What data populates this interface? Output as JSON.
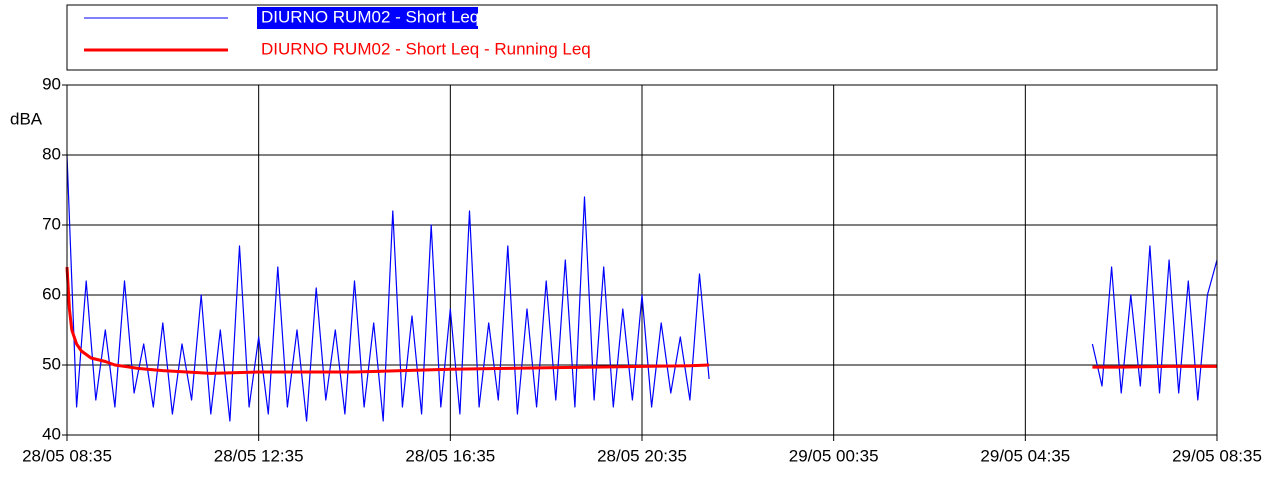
{
  "chart_data": {
    "type": "line",
    "ylabel": "dBA",
    "xlim": [
      0,
      24
    ],
    "xticks": [
      {
        "value": 0,
        "label": "28/05 08:35"
      },
      {
        "value": 4,
        "label": "28/05 12:35"
      },
      {
        "value": 8,
        "label": "28/05 16:35"
      },
      {
        "value": 12,
        "label": "28/05 20:35"
      },
      {
        "value": 16,
        "label": "29/05 00:35"
      },
      {
        "value": 20,
        "label": "29/05 04:35"
      },
      {
        "value": 24,
        "label": "29/05 08:35"
      }
    ],
    "ylim": [
      40,
      90
    ],
    "yticks": [
      40,
      50,
      60,
      70,
      80,
      90
    ],
    "grid": true,
    "series": [
      {
        "name": "DIURNO RUM02 - Short Leq",
        "color": "#0000ff",
        "x": [
          0,
          0.2,
          0.4,
          0.6,
          0.8,
          1.0,
          1.2,
          1.4,
          1.6,
          1.8,
          2.0,
          2.2,
          2.4,
          2.6,
          2.8,
          3.0,
          3.2,
          3.4,
          3.6,
          3.8,
          4.0,
          4.2,
          4.4,
          4.6,
          4.8,
          5.0,
          5.2,
          5.4,
          5.6,
          5.8,
          6.0,
          6.2,
          6.4,
          6.6,
          6.8,
          7.0,
          7.2,
          7.4,
          7.6,
          7.8,
          8.0,
          8.2,
          8.4,
          8.6,
          8.8,
          9.0,
          9.2,
          9.4,
          9.6,
          9.8,
          10.0,
          10.2,
          10.4,
          10.6,
          10.8,
          11.0,
          11.2,
          11.4,
          11.6,
          11.8,
          12.0,
          12.2,
          12.4,
          12.6,
          12.8,
          13.0,
          13.2,
          13.4,
          17.4,
          21.4,
          21.6,
          21.8,
          22.0,
          22.2,
          22.4,
          22.6,
          22.8,
          23.0,
          23.2,
          23.4,
          23.6,
          23.8,
          24.0
        ],
        "values": [
          80,
          44,
          62,
          45,
          55,
          44,
          62,
          46,
          53,
          44,
          56,
          43,
          53,
          45,
          60,
          43,
          55,
          42,
          67,
          44,
          54,
          43,
          64,
          44,
          55,
          42,
          61,
          45,
          55,
          43,
          62,
          44,
          56,
          42,
          72,
          44,
          57,
          43,
          70,
          44,
          58,
          43,
          72,
          44,
          56,
          45,
          67,
          43,
          58,
          44,
          62,
          45,
          65,
          44,
          74,
          45,
          64,
          44,
          58,
          45,
          60,
          44,
          56,
          46,
          54,
          45,
          63,
          48,
          null,
          53,
          47,
          64,
          46,
          60,
          47,
          67,
          46,
          65,
          46,
          62,
          45,
          60,
          65
        ]
      },
      {
        "name": "DIURNO RUM02 - Short Leq - Running Leq",
        "color": "#ff0000",
        "x": [
          0,
          0.05,
          0.1,
          0.2,
          0.3,
          0.5,
          0.8,
          1,
          1.5,
          2,
          3,
          4,
          5,
          6,
          7,
          8,
          9,
          10,
          11,
          12,
          13,
          13.4,
          17.4,
          21.4,
          22,
          23,
          24
        ],
        "values": [
          64,
          58,
          55,
          53,
          52,
          51,
          50.5,
          50,
          49.5,
          49.2,
          48.8,
          49,
          49,
          49,
          49.2,
          49.4,
          49.5,
          49.6,
          49.7,
          49.8,
          49.9,
          50,
          null,
          49.7,
          49.7,
          49.8,
          49.8
        ]
      }
    ]
  }
}
